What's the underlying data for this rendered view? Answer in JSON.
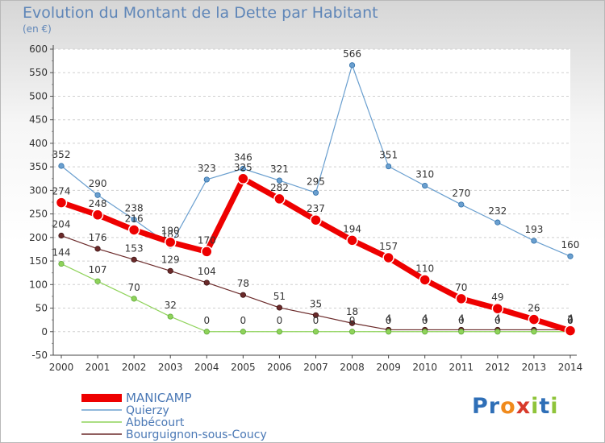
{
  "chart_data": {
    "type": "line",
    "title": "Evolution du Montant de la Dette par Habitant",
    "subtitle": "(en €)",
    "ylim": [
      -50,
      600
    ],
    "yticks": [
      -50,
      0,
      50,
      100,
      150,
      200,
      250,
      300,
      350,
      400,
      450,
      500,
      550,
      600
    ],
    "x": [
      "2000",
      "2001",
      "2002",
      "2003",
      "2004",
      "2005",
      "2006",
      "2007",
      "2008",
      "2009",
      "2010",
      "2011",
      "2012",
      "2013",
      "2014"
    ],
    "legend_position": "bottom-left",
    "series": [
      {
        "name": "MANICAMP",
        "color": "#ee0000",
        "values": [
          274,
          248,
          216,
          190,
          170,
          325,
          282,
          237,
          194,
          157,
          110,
          70,
          49,
          26,
          2
        ],
        "labels": [
          "274",
          "248",
          "216",
          "190",
          "170",
          "325",
          "282",
          "237",
          "194",
          "157",
          "110",
          "70",
          "49",
          "26",
          "2"
        ]
      },
      {
        "name": "Quierzy",
        "color": "#6a9fcf",
        "values": [
          352,
          290,
          238,
          183,
          323,
          346,
          321,
          295,
          566,
          351,
          310,
          270,
          232,
          193,
          160
        ],
        "labels": [
          "352",
          "290",
          "238",
          "183",
          "323",
          "346",
          "321",
          "295",
          "566",
          "351",
          "310",
          "270",
          "232",
          "193",
          "160"
        ]
      },
      {
        "name": "Abbécourt",
        "color": "#8fd35a",
        "values": [
          144,
          107,
          70,
          32,
          0,
          0,
          0,
          0,
          0,
          0,
          0,
          0,
          0,
          0,
          0
        ],
        "labels": [
          "144",
          "107",
          "70",
          "32",
          "0",
          "0",
          "0",
          "0",
          "0",
          "0",
          "0",
          "0",
          "0",
          "0",
          "0"
        ]
      },
      {
        "name": "Bourguignon-sous-Coucy",
        "color": "#6b2a2a",
        "values": [
          204,
          176,
          153,
          129,
          104,
          78,
          51,
          35,
          18,
          4,
          4,
          4,
          4,
          4,
          4
        ],
        "labels": [
          "204",
          "176",
          "153",
          "129",
          "104",
          "78",
          "51",
          "35",
          "18",
          "4",
          "4",
          "4",
          "4",
          "4",
          "4"
        ]
      }
    ]
  },
  "logo": {
    "text": "Proxiti",
    "letters": [
      "P",
      "r",
      "o",
      "x",
      "i",
      "t",
      "i"
    ],
    "colors": [
      "#2f6fb7",
      "#2f6fb7",
      "#f08a1c",
      "#d83a2b",
      "#8fc43a",
      "#2f6fb7",
      "#8fc43a"
    ]
  }
}
